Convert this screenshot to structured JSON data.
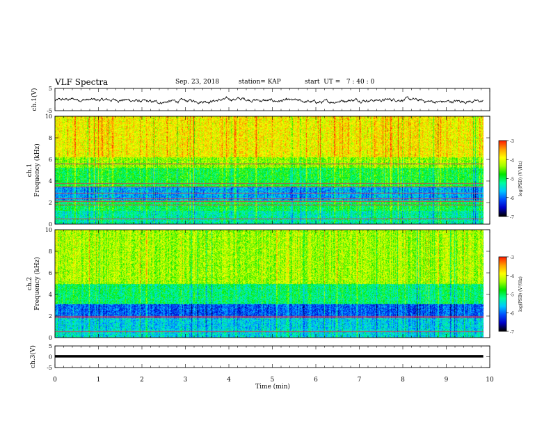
{
  "header": {
    "title": "VLF Spectra",
    "date": "Sep. 23, 2018",
    "station": "station= KAP",
    "start": "start  UT =   7 : 40 : 0"
  },
  "colors": {
    "colormap": [
      "#000000",
      "#0000c8",
      "#0050ff",
      "#00c8ff",
      "#00ff9b",
      "#00e600",
      "#a0ff00",
      "#ffff00",
      "#ffa000",
      "#ff2000",
      "#ffffff"
    ],
    "waveform": "#000000",
    "line_artifact": "#d0405a"
  },
  "chart_data": [
    {
      "type": "line",
      "panel": "ch1-waveform",
      "ylabel": "ch.1(V)",
      "ylim": [
        -5,
        5
      ],
      "yticks": [
        "5",
        "-5"
      ],
      "x_range_min": [
        0,
        9.85
      ],
      "description_values": {
        "mean": -0.5,
        "amplitude": 1.3
      }
    },
    {
      "type": "heatmap",
      "panel": "ch1-spectrogram",
      "ylabel": "ch.1",
      "ylabel2": "Frequency (kHz)",
      "ylim": [
        0,
        10
      ],
      "yticks": [
        "0",
        "2",
        "4",
        "6",
        "8",
        "10"
      ],
      "colorbar_label": "log(PSD) (V²/Hz)",
      "colorbar_ticks": [
        "-3",
        "-4",
        "-5",
        "-6",
        "-7"
      ],
      "clim": [
        -7,
        -3
      ],
      "bands_kHz": [
        [
          0,
          1.2,
          -5.3
        ],
        [
          1.2,
          2.2,
          -5.0
        ],
        [
          2.2,
          3.4,
          -5.8
        ],
        [
          3.4,
          5.2,
          -4.9
        ],
        [
          5.2,
          6.2,
          -4.4
        ],
        [
          6.2,
          10,
          -3.9
        ]
      ],
      "lines_kHz": [
        0.5,
        1.8,
        2.1,
        2.4,
        2.9,
        3.5,
        3.8,
        5.6
      ]
    },
    {
      "type": "heatmap",
      "panel": "ch2-spectrogram",
      "ylabel": "ch.2",
      "ylabel2": "Frequency (kHz)",
      "ylim": [
        0,
        10
      ],
      "yticks": [
        "0",
        "2",
        "4",
        "6",
        "8",
        "10"
      ],
      "colorbar_label": "log(PSD) (V²/Hz)",
      "colorbar_ticks": [
        "-3",
        "-4",
        "-5",
        "-6",
        "-7"
      ],
      "clim": [
        -7,
        -3
      ],
      "bands_kHz": [
        [
          0,
          0.8,
          -5.5
        ],
        [
          0.8,
          1.8,
          -5.6
        ],
        [
          1.8,
          3.1,
          -6.1
        ],
        [
          3.1,
          5.0,
          -5.1
        ],
        [
          5.0,
          10,
          -4.3
        ]
      ],
      "lines_kHz": [
        0.6,
        1.9,
        2.0
      ]
    },
    {
      "type": "line",
      "panel": "ch3-waveform",
      "ylabel": "ch.3(V)",
      "ylim": [
        -5,
        5
      ],
      "yticks": [
        "5",
        "0",
        "-5"
      ],
      "constant_value": 0.2
    }
  ],
  "xaxis": {
    "label": "Time  (min)",
    "xlim": [
      0,
      10
    ],
    "ticks": [
      "0",
      "1",
      "2",
      "3",
      "4",
      "5",
      "6",
      "7",
      "8",
      "9",
      "10"
    ]
  }
}
